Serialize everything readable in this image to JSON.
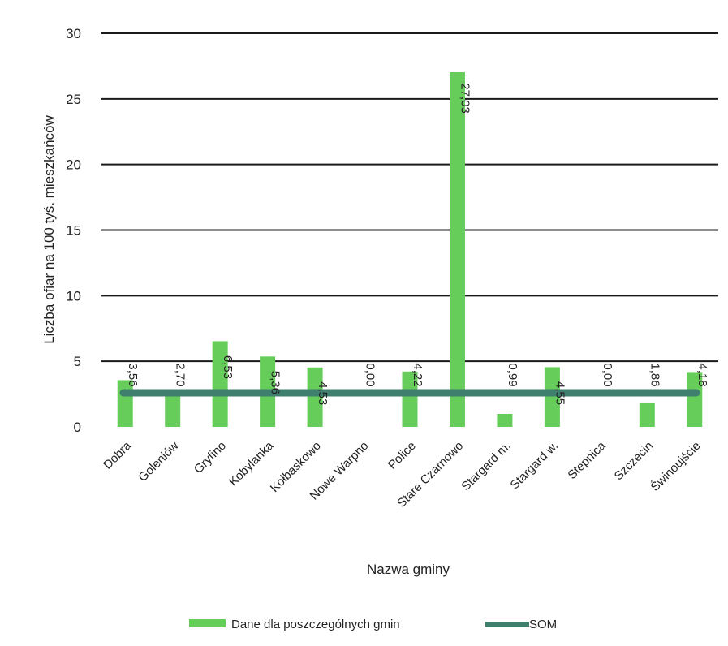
{
  "chart_data": {
    "type": "bar",
    "title": "",
    "xlabel": "Nazwa gminy",
    "ylabel": "Liczba ofiar na 100 tyś. mieszkańców",
    "ylim": [
      0,
      30
    ],
    "yticks": [
      0,
      5,
      10,
      15,
      20,
      25,
      30
    ],
    "grid": true,
    "legend_position": "bottom",
    "categories": [
      "Dobra",
      "Goleniów",
      "Gryfino",
      "Kobylanka",
      "Kołbaskowo",
      "Nowe Warpno",
      "Police",
      "Stare Czarnowo",
      "Stargard m.",
      "Stargard w.",
      "Stepnica",
      "Szczecin",
      "Świnoujście"
    ],
    "series": [
      {
        "name": "Dane dla poszczególnych gmin",
        "kind": "bar",
        "color": "#66cc5a",
        "values": [
          3.56,
          2.7,
          6.53,
          5.36,
          4.53,
          0.0,
          4.22,
          27.03,
          0.99,
          4.55,
          0.0,
          1.86,
          4.18
        ],
        "labels": [
          "3,56",
          "2,70",
          "6,53",
          "5,36",
          "4,53",
          "0,00",
          "4,22",
          "27,03",
          "0,99",
          "4,55",
          "0,00",
          "1,86",
          "4,18"
        ]
      },
      {
        "name": "SOM",
        "kind": "line",
        "color": "#3f7f6e",
        "values": [
          2.6,
          2.6,
          2.6,
          2.6,
          2.6,
          2.6,
          2.6,
          2.6,
          2.6,
          2.6,
          2.6,
          2.6,
          2.6
        ]
      }
    ]
  }
}
